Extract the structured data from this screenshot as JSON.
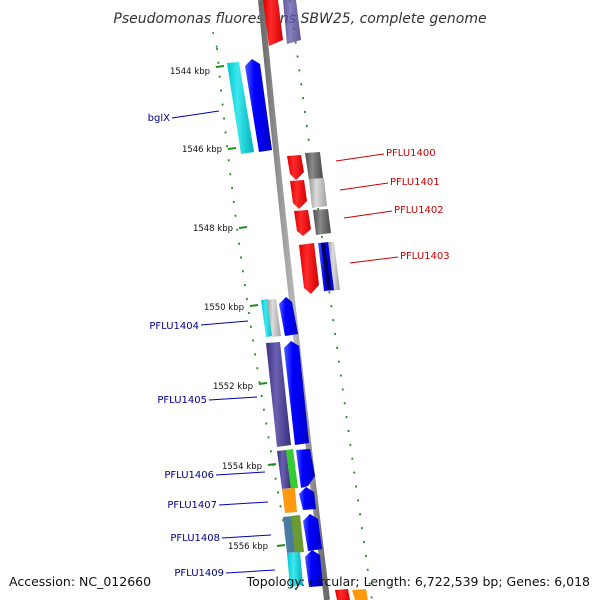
{
  "title": "Pseudomonas fluorescens SBW25, complete genome",
  "footer": {
    "accession": "Accession: NC_012660",
    "topology": "Topology: circular; Length: 6,722,539 bp; Genes: 6,018"
  },
  "scale_labels": [
    "1544 kbp",
    "1546 kbp",
    "1548 kbp",
    "1550 kbp",
    "1552 kbp",
    "1554 kbp",
    "1556 kbp"
  ],
  "gene_labels_left": [
    "bglX",
    "PFLU1404",
    "PFLU1405",
    "PFLU1406",
    "PFLU1407",
    "PFLU1408",
    "PFLU1409"
  ],
  "gene_labels_right": [
    "PFLU1400",
    "PFLU1401",
    "PFLU1402",
    "PFLU1403"
  ],
  "colors": {
    "forward": "#0000ee",
    "reverse": "#ff0000",
    "left_label": "#00008b",
    "right_label": "#cc0000",
    "scale_tick": "#228b22",
    "backbone": "#888888"
  }
}
